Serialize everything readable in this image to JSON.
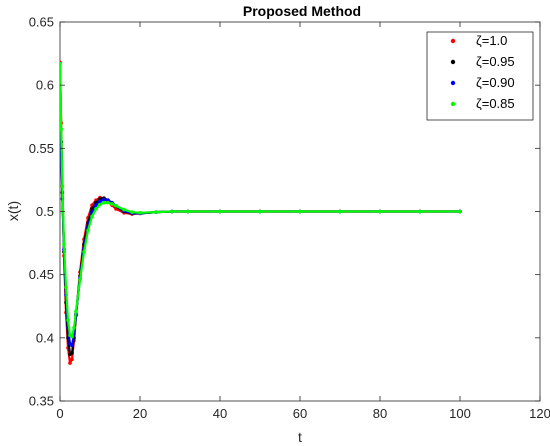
{
  "chart_data": {
    "type": "scatter",
    "title": "Proposed Method",
    "xlabel": "t",
    "ylabel": "x(t)",
    "xlim": [
      0,
      120
    ],
    "ylim": [
      0.35,
      0.65
    ],
    "xticks": [
      0,
      20,
      40,
      60,
      80,
      100,
      120
    ],
    "yticks": [
      0.35,
      0.4,
      0.45,
      0.5,
      0.55,
      0.6,
      0.65
    ],
    "xtick_labels": [
      "0",
      "20",
      "40",
      "60",
      "80",
      "100",
      "120"
    ],
    "ytick_labels": [
      "0.35",
      "0.4",
      "0.45",
      "0.5",
      "0.55",
      "0.6",
      "0.65"
    ],
    "grid": false,
    "legend_position": "top-right",
    "series": [
      {
        "name": "ζ=1.0",
        "color": "#ff0000",
        "x": [
          0,
          0.3,
          0.6,
          1.0,
          1.5,
          2.0,
          2.5,
          3.0,
          3.5,
          4.0,
          5.0,
          6.0,
          7.0,
          8.0,
          9.0,
          10.0,
          11.0,
          12.0,
          13.0,
          14.0,
          16.0,
          18.0,
          20.0,
          24.0,
          28.0,
          32.0,
          40.0,
          50.0,
          60.0,
          70.0,
          80.0,
          90.0,
          100.0
        ],
        "y": [
          0.618,
          0.57,
          0.52,
          0.465,
          0.42,
          0.392,
          0.38,
          0.383,
          0.398,
          0.418,
          0.452,
          0.478,
          0.495,
          0.505,
          0.509,
          0.511,
          0.51,
          0.508,
          0.505,
          0.502,
          0.499,
          0.498,
          0.4985,
          0.4995,
          0.5,
          0.5,
          0.5,
          0.5,
          0.5,
          0.5,
          0.5,
          0.5,
          0.5
        ]
      },
      {
        "name": "ζ=0.95",
        "color": "#000000",
        "x": [
          0,
          0.3,
          0.6,
          1.0,
          1.5,
          2.0,
          2.5,
          3.0,
          3.5,
          4.0,
          5.0,
          6.0,
          7.0,
          8.0,
          9.0,
          10.0,
          11.0,
          12.0,
          13.0,
          14.0,
          16.0,
          18.0,
          20.0,
          24.0,
          28.0,
          32.0,
          40.0,
          50.0,
          60.0,
          70.0,
          80.0,
          90.0,
          100.0
        ],
        "y": [
          0.59,
          0.555,
          0.515,
          0.468,
          0.428,
          0.4,
          0.387,
          0.388,
          0.4,
          0.418,
          0.449,
          0.474,
          0.491,
          0.502,
          0.507,
          0.51,
          0.5105,
          0.509,
          0.5065,
          0.504,
          0.5,
          0.4985,
          0.4985,
          0.4995,
          0.5,
          0.5,
          0.5,
          0.5,
          0.5,
          0.5,
          0.5,
          0.5,
          0.5
        ]
      },
      {
        "name": "ζ=0.90",
        "color": "#0000ff",
        "x": [
          0,
          0.3,
          0.6,
          1.0,
          1.5,
          2.0,
          2.5,
          3.0,
          3.5,
          4.0,
          5.0,
          6.0,
          7.0,
          8.0,
          9.0,
          10.0,
          11.0,
          12.0,
          13.0,
          14.0,
          16.0,
          18.0,
          20.0,
          24.0,
          28.0,
          32.0,
          40.0,
          50.0,
          60.0,
          70.0,
          80.0,
          90.0,
          100.0
        ],
        "y": [
          0.575,
          0.545,
          0.51,
          0.47,
          0.434,
          0.408,
          0.395,
          0.394,
          0.403,
          0.419,
          0.447,
          0.471,
          0.488,
          0.499,
          0.505,
          0.508,
          0.5095,
          0.509,
          0.507,
          0.5045,
          0.5005,
          0.4988,
          0.4986,
          0.4995,
          0.5,
          0.5,
          0.5,
          0.5,
          0.5,
          0.5,
          0.5,
          0.5,
          0.5
        ]
      },
      {
        "name": "ζ=0.85",
        "color": "#00ff00",
        "x": [
          0,
          0.3,
          0.6,
          1.0,
          1.5,
          2.0,
          2.5,
          3.0,
          3.5,
          4.0,
          5.0,
          6.0,
          7.0,
          8.0,
          9.0,
          10.0,
          11.0,
          12.0,
          13.0,
          14.0,
          16.0,
          18.0,
          20.0,
          24.0,
          28.0,
          32.0,
          40.0,
          50.0,
          60.0,
          70.0,
          80.0,
          90.0,
          100.0
        ],
        "y": [
          0.617,
          0.565,
          0.52,
          0.474,
          0.44,
          0.414,
          0.402,
          0.401,
          0.408,
          0.421,
          0.446,
          0.468,
          0.485,
          0.496,
          0.502,
          0.5055,
          0.507,
          0.507,
          0.506,
          0.5045,
          0.5015,
          0.4995,
          0.499,
          0.4995,
          0.5,
          0.5,
          0.5,
          0.5,
          0.5,
          0.5,
          0.5,
          0.5,
          0.5
        ]
      }
    ]
  }
}
